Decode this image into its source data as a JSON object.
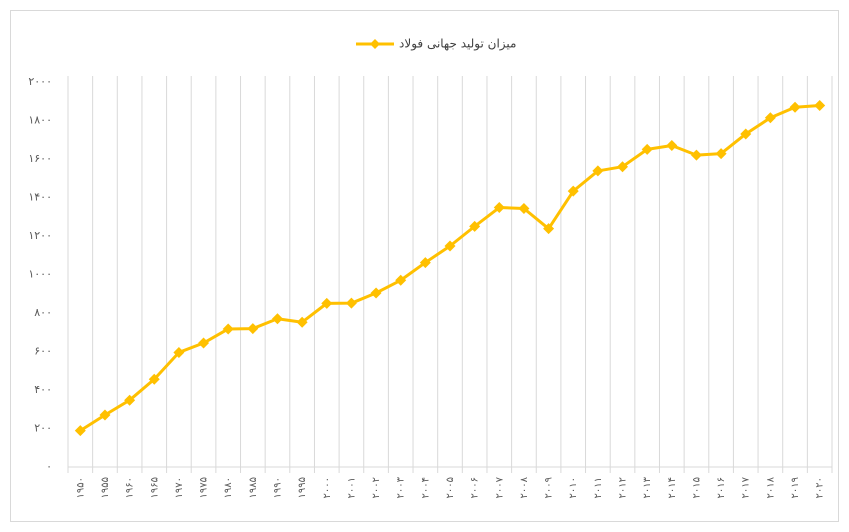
{
  "chart_data": {
    "type": "line",
    "legend": "top",
    "series": [
      {
        "name": "میزان تولید جهانی فولاد",
        "color": "#FFC000",
        "values": [
          189,
          270,
          347,
          456,
          595,
          644,
          717,
          719,
          770,
          752,
          850,
          851,
          904,
          970,
          1062,
          1148,
          1250,
          1348,
          1343,
          1238,
          1433,
          1538,
          1560,
          1650,
          1670,
          1620,
          1628,
          1730,
          1814,
          1869,
          1878
        ]
      }
    ],
    "categories": [
      "۱۹۵۰",
      "۱۹۵۵",
      "۱۹۶۰",
      "۱۹۶۵",
      "۱۹۷۰",
      "۱۹۷۵",
      "۱۹۸۰",
      "۱۹۸۵",
      "۱۹۹۰",
      "۱۹۹۵",
      "۲۰۰۰",
      "۲۰۰۱",
      "۲۰۰۲",
      "۲۰۰۳",
      "۲۰۰۴",
      "۲۰۰۵",
      "۲۰۰۶",
      "۲۰۰۷",
      "۲۰۰۸",
      "۲۰۰۹",
      "۲۰۱۰",
      "۲۰۱۱",
      "۲۰۱۲",
      "۲۰۱۳",
      "۲۰۱۴",
      "۲۰۱۵",
      "۲۰۱۶",
      "۲۰۱۷",
      "۲۰۱۸",
      "۲۰۱۹",
      "۲۰۲۰"
    ],
    "ylim": [
      0,
      2000
    ],
    "yticks": [
      {
        "value": 0,
        "label": "۰"
      },
      {
        "value": 200,
        "label": "۲۰۰"
      },
      {
        "value": 400,
        "label": "۴۰۰"
      },
      {
        "value": 600,
        "label": "۶۰۰"
      },
      {
        "value": 800,
        "label": "۸۰۰"
      },
      {
        "value": 1000,
        "label": "۱۰۰۰"
      },
      {
        "value": 1200,
        "label": "۱۲۰۰"
      },
      {
        "value": 1400,
        "label": "۱۴۰۰"
      },
      {
        "value": 1600,
        "label": "۱۶۰۰"
      },
      {
        "value": 1800,
        "label": "۱۸۰۰"
      },
      {
        "value": 2000,
        "label": "۲۰۰۰"
      }
    ],
    "grid": "x"
  }
}
